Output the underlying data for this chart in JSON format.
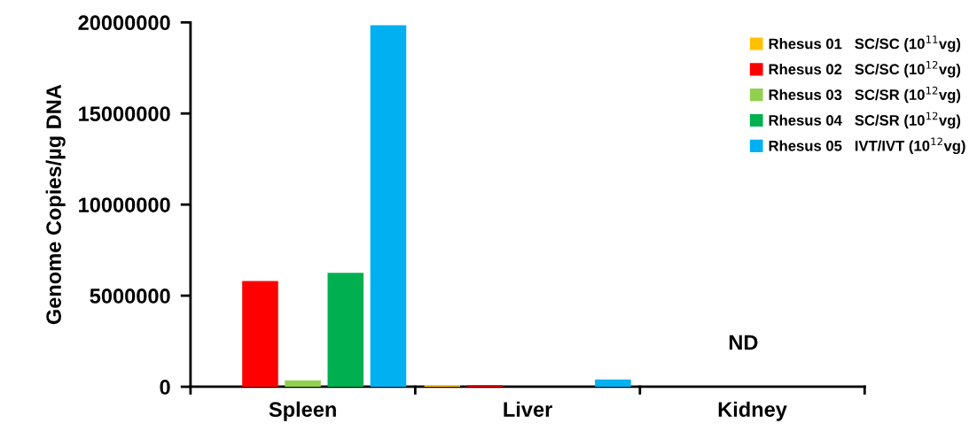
{
  "chart_data": {
    "type": "bar",
    "ylabel": "Genome Copies/µg DNA",
    "categories": [
      "Spleen",
      "Liver",
      "Kidney"
    ],
    "series": [
      {
        "name": "Rhesus 01   SC/SC (10$^{11}$vg)",
        "color": "#ffc000",
        "values": [
          0,
          100000,
          null
        ]
      },
      {
        "name": "Rhesus 02   SC/SC (10$^{12}$vg)",
        "color": "#ff0000",
        "values": [
          5800000,
          100000,
          null
        ]
      },
      {
        "name": "Rhesus 03   SC/SR (10$^{12}$vg)",
        "color": "#92d050",
        "values": [
          350000,
          0,
          null
        ]
      },
      {
        "name": "Rhesus 04   SC/SR (10$^{12}$vg)",
        "color": "#00b050",
        "values": [
          6250000,
          0,
          null
        ]
      },
      {
        "name": "Rhesus 05   IVT/IVT (10$^{12}$vg)",
        "color": "#00b0f0",
        "values": [
          19850000,
          400000,
          null
        ]
      }
    ],
    "ylim": [
      0,
      20000000
    ],
    "yticks": [
      0,
      5000000,
      10000000,
      15000000,
      20000000
    ],
    "annotations": [
      "ND"
    ],
    "legend": "top right",
    "grid": false
  }
}
